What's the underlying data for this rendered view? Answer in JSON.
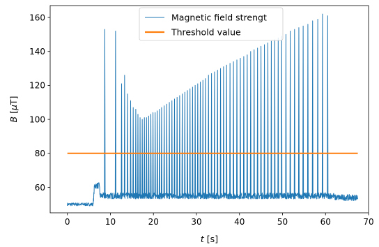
{
  "chart_data": {
    "type": "line",
    "xlabel_var": "t",
    "xlabel_unit": " [s]",
    "ylabel_var": "B",
    "ylabel_unit_open": " [",
    "ylabel_unit_mu": "μ",
    "ylabel_unit_close": "T]",
    "xlim": [
      -4,
      70
    ],
    "ylim": [
      45,
      167
    ],
    "xticks": [
      0,
      10,
      20,
      30,
      40,
      50,
      60,
      70
    ],
    "yticks": [
      60,
      80,
      100,
      120,
      140,
      160
    ],
    "grid": false,
    "legend_position": "top-center",
    "series": [
      {
        "name": "Magnetic field strengt",
        "color": "#1f77b4",
        "baseline_segments": [
          {
            "t": [
              0,
              6.0
            ],
            "value": 50
          },
          {
            "t": [
              6.3,
              7.5
            ],
            "value": 61
          },
          {
            "t": [
              7.5,
              62
            ],
            "value": 55
          },
          {
            "t": [
              62,
              67.5
            ],
            "value": 54
          }
        ],
        "spikes": [
          {
            "t": 8.7,
            "peak": 153
          },
          {
            "t": 11.2,
            "peak": 152
          },
          {
            "t": 12.6,
            "peak": 121
          },
          {
            "t": 13.3,
            "peak": 126
          },
          {
            "t": 14.0,
            "peak": 115
          },
          {
            "t": 14.7,
            "peak": 111
          },
          {
            "t": 15.3,
            "peak": 107
          },
          {
            "t": 15.9,
            "peak": 106
          },
          {
            "t": 16.4,
            "peak": 103
          },
          {
            "t": 16.9,
            "peak": 101
          },
          {
            "t": 17.4,
            "peak": 100
          },
          {
            "t": 17.9,
            "peak": 101
          },
          {
            "t": 18.4,
            "peak": 101
          },
          {
            "t": 18.9,
            "peak": 102
          },
          {
            "t": 19.4,
            "peak": 103
          },
          {
            "t": 19.9,
            "peak": 104
          },
          {
            "t": 20.4,
            "peak": 104
          },
          {
            "t": 20.9,
            "peak": 105
          },
          {
            "t": 21.4,
            "peak": 106
          },
          {
            "t": 21.9,
            "peak": 107
          },
          {
            "t": 22.5,
            "peak": 108
          },
          {
            "t": 23.1,
            "peak": 109
          },
          {
            "t": 23.7,
            "peak": 110
          },
          {
            "t": 24.3,
            "peak": 111
          },
          {
            "t": 24.9,
            "peak": 112
          },
          {
            "t": 25.5,
            "peak": 113
          },
          {
            "t": 26.1,
            "peak": 114
          },
          {
            "t": 26.7,
            "peak": 115
          },
          {
            "t": 27.3,
            "peak": 116
          },
          {
            "t": 27.9,
            "peak": 117
          },
          {
            "t": 28.5,
            "peak": 118
          },
          {
            "t": 29.1,
            "peak": 119
          },
          {
            "t": 29.7,
            "peak": 120
          },
          {
            "t": 30.3,
            "peak": 121
          },
          {
            "t": 30.9,
            "peak": 122
          },
          {
            "t": 31.5,
            "peak": 123
          },
          {
            "t": 32.1,
            "peak": 124
          },
          {
            "t": 32.8,
            "peak": 126
          },
          {
            "t": 33.5,
            "peak": 127
          },
          {
            "t": 34.2,
            "peak": 128
          },
          {
            "t": 34.9,
            "peak": 129
          },
          {
            "t": 35.6,
            "peak": 130
          },
          {
            "t": 36.3,
            "peak": 131
          },
          {
            "t": 37.0,
            "peak": 132
          },
          {
            "t": 37.8,
            "peak": 133
          },
          {
            "t": 38.6,
            "peak": 134
          },
          {
            "t": 39.4,
            "peak": 135
          },
          {
            "t": 40.2,
            "peak": 136
          },
          {
            "t": 41.0,
            "peak": 137
          },
          {
            "t": 41.8,
            "peak": 138
          },
          {
            "t": 42.6,
            "peak": 140
          },
          {
            "t": 43.4,
            "peak": 141
          },
          {
            "t": 44.2,
            "peak": 142
          },
          {
            "t": 45.0,
            "peak": 143
          },
          {
            "t": 45.8,
            "peak": 144
          },
          {
            "t": 46.6,
            "peak": 145
          },
          {
            "t": 47.4,
            "peak": 146
          },
          {
            "t": 48.2,
            "peak": 147
          },
          {
            "t": 49.0,
            "peak": 148
          },
          {
            "t": 49.8,
            "peak": 149
          },
          {
            "t": 50.8,
            "peak": 150
          },
          {
            "t": 51.8,
            "peak": 152
          },
          {
            "t": 52.8,
            "peak": 153
          },
          {
            "t": 53.8,
            "peak": 154
          },
          {
            "t": 54.8,
            "peak": 155
          },
          {
            "t": 55.9,
            "peak": 156
          },
          {
            "t": 57.0,
            "peak": 158
          },
          {
            "t": 58.2,
            "peak": 159
          },
          {
            "t": 59.3,
            "peak": 162
          },
          {
            "t": 60.5,
            "peak": 161
          }
        ]
      },
      {
        "name": "Threshold value",
        "color": "#ff7f0e",
        "x": [
          0,
          67.5
        ],
        "y": [
          80,
          80
        ]
      }
    ]
  }
}
